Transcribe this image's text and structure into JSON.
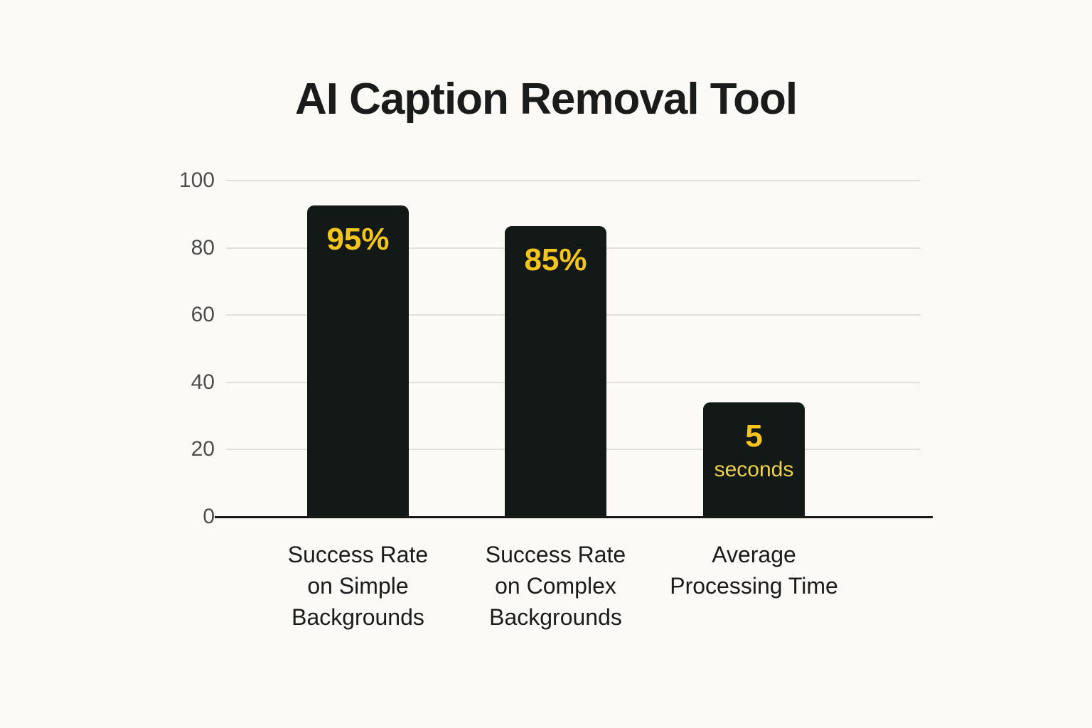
{
  "title": "AI Caption Removal Tool",
  "colors": {
    "background": "#FBFAF7",
    "bar": "#121917",
    "value_label": "#F5C51B",
    "value_sublabel": "#EDD24B",
    "gridline": "#E2E0DB",
    "axis_line": "#1A1A1A",
    "tick_label": "#4C4C4A",
    "title_text": "#1A1C1B"
  },
  "chart_data": {
    "type": "bar",
    "title": "AI Caption Removal Tool",
    "categories": [
      "Success Rate\non Simple\nBackgrounds",
      "Success Rate\non Complex\nBackgrounds",
      "Average\nProcessing Time"
    ],
    "bars": [
      {
        "category": "Success Rate on Simple Backgrounds",
        "label": "95%",
        "sublabel": "",
        "value": 95,
        "drawn_height": 92.5
      },
      {
        "category": "Success Rate on Complex Backgrounds",
        "label": "85%",
        "sublabel": "",
        "value": 85,
        "drawn_height": 86.5
      },
      {
        "category": "Average Processing Time",
        "label": "5",
        "sublabel": "seconds",
        "value": 5,
        "drawn_height": 34
      }
    ],
    "xlabel": "",
    "ylabel": "",
    "y_ticks": [
      0,
      20,
      40,
      60,
      80,
      100
    ],
    "ylim": [
      0,
      100
    ],
    "grid": true,
    "legend": false
  }
}
